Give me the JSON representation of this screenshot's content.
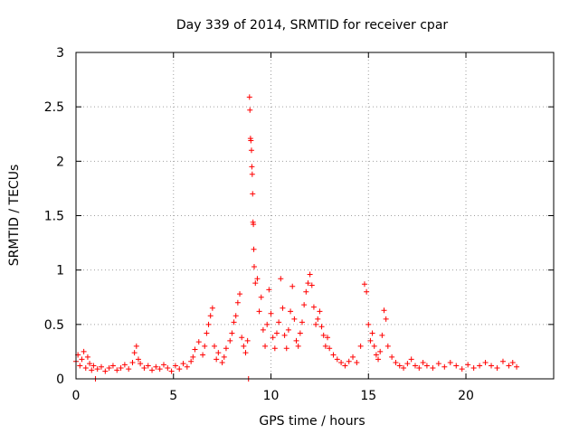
{
  "chart_data": {
    "type": "scatter",
    "title": "Day 339 of 2014, SRMTID for receiver cpar",
    "xlabel": "GPS time / hours",
    "ylabel": "SRMTID / TECUs",
    "xlim": [
      0,
      24.5
    ],
    "ylim": [
      0,
      3
    ],
    "x_ticks": [
      0,
      5,
      10,
      15,
      20
    ],
    "x_tick_labels": [
      "0",
      "5",
      "10",
      "15",
      "20"
    ],
    "y_ticks": [
      0,
      0.5,
      1,
      1.5,
      2,
      2.5,
      3
    ],
    "y_tick_labels": [
      "0",
      "0.5",
      "1",
      "1.5",
      "2",
      "2.5",
      "3"
    ],
    "grid": true,
    "marker": "+",
    "color": "#ff0000",
    "series": [
      {
        "name": "SRMTID",
        "points": [
          [
            0.0,
            0.16
          ],
          [
            0.1,
            0.22
          ],
          [
            0.2,
            0.12
          ],
          [
            0.3,
            0.18
          ],
          [
            0.4,
            0.25
          ],
          [
            0.5,
            0.1
          ],
          [
            0.6,
            0.2
          ],
          [
            0.7,
            0.14
          ],
          [
            0.8,
            0.08
          ],
          [
            0.9,
            0.12
          ],
          [
            1.0,
            0.0
          ],
          [
            1.1,
            0.09
          ],
          [
            1.3,
            0.11
          ],
          [
            1.5,
            0.07
          ],
          [
            1.7,
            0.1
          ],
          [
            1.9,
            0.12
          ],
          [
            2.1,
            0.08
          ],
          [
            2.3,
            0.1
          ],
          [
            2.5,
            0.13
          ],
          [
            2.7,
            0.09
          ],
          [
            2.9,
            0.15
          ],
          [
            3.0,
            0.24
          ],
          [
            3.1,
            0.3
          ],
          [
            3.2,
            0.18
          ],
          [
            3.3,
            0.14
          ],
          [
            3.5,
            0.1
          ],
          [
            3.7,
            0.12
          ],
          [
            3.9,
            0.08
          ],
          [
            4.1,
            0.11
          ],
          [
            4.3,
            0.09
          ],
          [
            4.5,
            0.13
          ],
          [
            4.7,
            0.1
          ],
          [
            4.9,
            0.07
          ],
          [
            5.1,
            0.12
          ],
          [
            5.3,
            0.09
          ],
          [
            5.5,
            0.14
          ],
          [
            5.7,
            0.11
          ],
          [
            5.9,
            0.16
          ],
          [
            6.0,
            0.2
          ],
          [
            6.1,
            0.27
          ],
          [
            6.3,
            0.34
          ],
          [
            6.5,
            0.22
          ],
          [
            6.6,
            0.3
          ],
          [
            6.7,
            0.42
          ],
          [
            6.8,
            0.5
          ],
          [
            6.9,
            0.58
          ],
          [
            7.0,
            0.65
          ],
          [
            7.1,
            0.3
          ],
          [
            7.2,
            0.18
          ],
          [
            7.3,
            0.24
          ],
          [
            7.5,
            0.15
          ],
          [
            7.6,
            0.2
          ],
          [
            7.7,
            0.28
          ],
          [
            7.9,
            0.35
          ],
          [
            8.0,
            0.42
          ],
          [
            8.1,
            0.52
          ],
          [
            8.2,
            0.58
          ],
          [
            8.3,
            0.7
          ],
          [
            8.4,
            0.78
          ],
          [
            8.5,
            0.38
          ],
          [
            8.6,
            0.3
          ],
          [
            8.7,
            0.24
          ],
          [
            8.8,
            0.35
          ],
          [
            8.85,
            0.0
          ],
          [
            8.9,
            2.59
          ],
          [
            8.92,
            2.47
          ],
          [
            8.95,
            2.21
          ],
          [
            8.97,
            2.19
          ],
          [
            9.0,
            2.1
          ],
          [
            9.02,
            1.95
          ],
          [
            9.04,
            1.88
          ],
          [
            9.06,
            1.7
          ],
          [
            9.08,
            1.44
          ],
          [
            9.1,
            1.42
          ],
          [
            9.12,
            1.19
          ],
          [
            9.14,
            1.03
          ],
          [
            9.2,
            0.88
          ],
          [
            9.3,
            0.92
          ],
          [
            9.4,
            0.62
          ],
          [
            9.5,
            0.75
          ],
          [
            9.6,
            0.45
          ],
          [
            9.7,
            0.3
          ],
          [
            9.8,
            0.5
          ],
          [
            9.9,
            0.82
          ],
          [
            10.0,
            0.6
          ],
          [
            10.1,
            0.38
          ],
          [
            10.2,
            0.28
          ],
          [
            10.3,
            0.42
          ],
          [
            10.4,
            0.52
          ],
          [
            10.5,
            0.92
          ],
          [
            10.6,
            0.65
          ],
          [
            10.7,
            0.4
          ],
          [
            10.8,
            0.28
          ],
          [
            10.9,
            0.45
          ],
          [
            11.0,
            0.62
          ],
          [
            11.1,
            0.85
          ],
          [
            11.2,
            0.55
          ],
          [
            11.3,
            0.35
          ],
          [
            11.4,
            0.3
          ],
          [
            11.5,
            0.42
          ],
          [
            11.6,
            0.52
          ],
          [
            11.7,
            0.68
          ],
          [
            11.8,
            0.8
          ],
          [
            11.9,
            0.88
          ],
          [
            12.0,
            0.96
          ],
          [
            12.1,
            0.86
          ],
          [
            12.2,
            0.66
          ],
          [
            12.3,
            0.5
          ],
          [
            12.4,
            0.55
          ],
          [
            12.5,
            0.62
          ],
          [
            12.6,
            0.48
          ],
          [
            12.7,
            0.4
          ],
          [
            12.8,
            0.3
          ],
          [
            12.9,
            0.38
          ],
          [
            13.0,
            0.28
          ],
          [
            13.2,
            0.22
          ],
          [
            13.4,
            0.18
          ],
          [
            13.6,
            0.15
          ],
          [
            13.8,
            0.12
          ],
          [
            14.0,
            0.16
          ],
          [
            14.2,
            0.2
          ],
          [
            14.4,
            0.15
          ],
          [
            14.6,
            0.3
          ],
          [
            14.8,
            0.87
          ],
          [
            14.9,
            0.8
          ],
          [
            15.0,
            0.5
          ],
          [
            15.1,
            0.35
          ],
          [
            15.2,
            0.42
          ],
          [
            15.3,
            0.3
          ],
          [
            15.4,
            0.22
          ],
          [
            15.5,
            0.18
          ],
          [
            15.6,
            0.25
          ],
          [
            15.7,
            0.4
          ],
          [
            15.8,
            0.63
          ],
          [
            15.9,
            0.55
          ],
          [
            16.0,
            0.3
          ],
          [
            16.2,
            0.2
          ],
          [
            16.4,
            0.15
          ],
          [
            16.6,
            0.12
          ],
          [
            16.8,
            0.1
          ],
          [
            17.0,
            0.14
          ],
          [
            17.2,
            0.18
          ],
          [
            17.4,
            0.12
          ],
          [
            17.6,
            0.1
          ],
          [
            17.8,
            0.15
          ],
          [
            18.0,
            0.12
          ],
          [
            18.3,
            0.1
          ],
          [
            18.6,
            0.14
          ],
          [
            18.9,
            0.11
          ],
          [
            19.2,
            0.15
          ],
          [
            19.5,
            0.12
          ],
          [
            19.8,
            0.09
          ],
          [
            20.1,
            0.13
          ],
          [
            20.4,
            0.1
          ],
          [
            20.7,
            0.12
          ],
          [
            21.0,
            0.15
          ],
          [
            21.3,
            0.12
          ],
          [
            21.6,
            0.1
          ],
          [
            21.9,
            0.16
          ],
          [
            22.2,
            0.12
          ],
          [
            22.4,
            0.15
          ],
          [
            22.6,
            0.11
          ]
        ]
      }
    ]
  }
}
